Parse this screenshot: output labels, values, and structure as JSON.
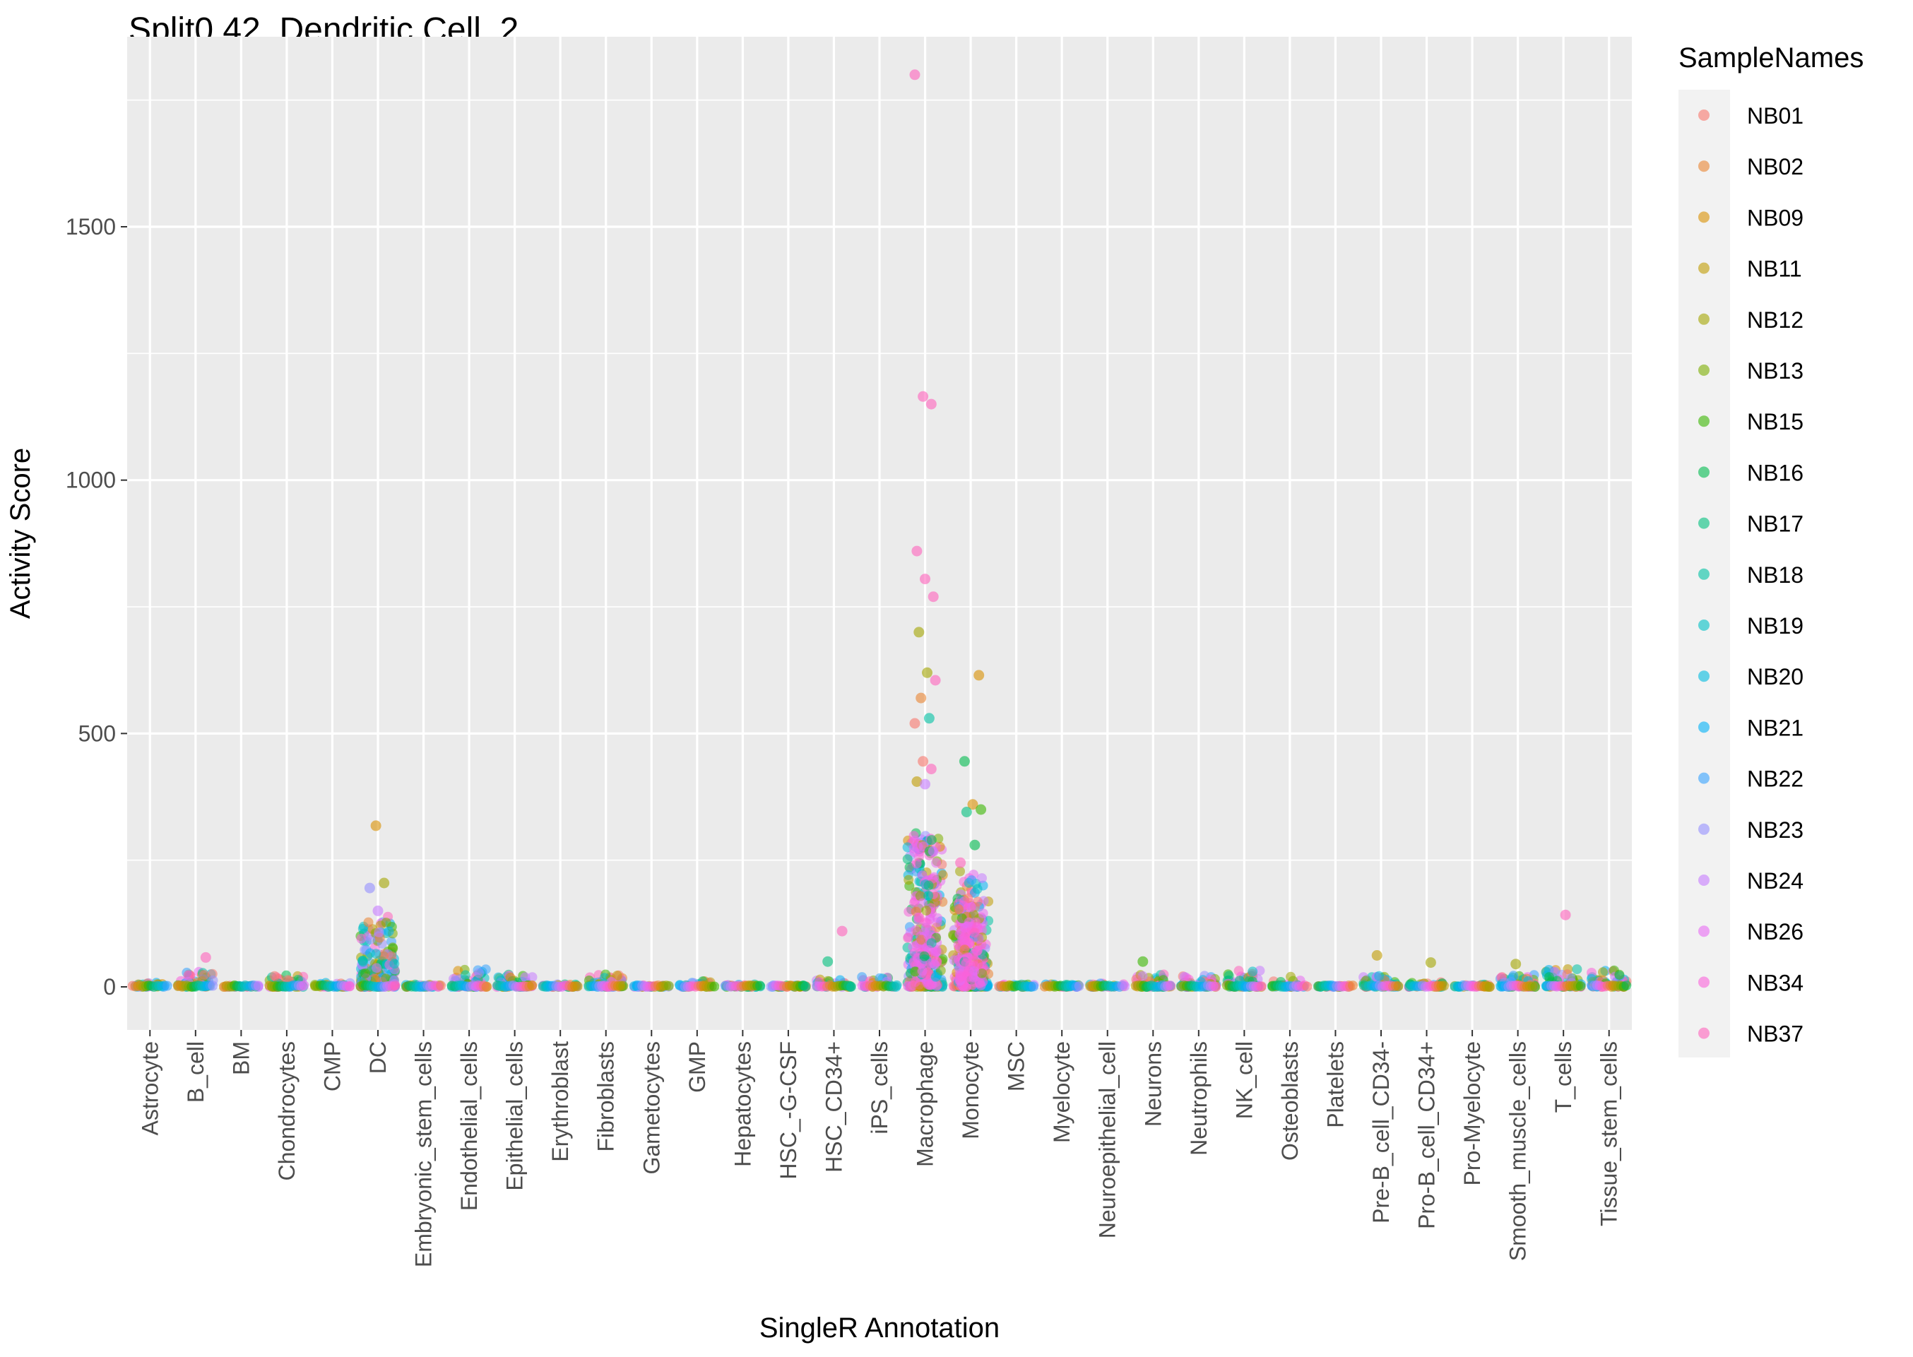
{
  "chart_data": {
    "type": "scatter",
    "title": "Split0 42. Dendritic Cell_2",
    "xlabel": "SingleR Annotation",
    "ylabel": "Activity Score",
    "ylim": [
      -85,
      1875
    ],
    "yticks": [
      0,
      500,
      1000,
      1500
    ],
    "grid": true,
    "legend_position": "right",
    "legend_title": "SampleNames",
    "categories": [
      "Astrocyte",
      "B_cell",
      "BM",
      "Chondrocytes",
      "CMP",
      "DC",
      "Embryonic_stem_cells",
      "Endothelial_cells",
      "Epithelial_cells",
      "Erythroblast",
      "Fibroblasts",
      "Gametocytes",
      "GMP",
      "Hepatocytes",
      "HSC_-G-CSF",
      "HSC_CD34+",
      "iPS_cells",
      "Macrophage",
      "Monocyte",
      "MSC",
      "Myelocyte",
      "Neuroepithelial_cell",
      "Neurons",
      "Neutrophils",
      "NK_cell",
      "Osteoblasts",
      "Platelets",
      "Pre-B_cell_CD34-",
      "Pro-B_cell_CD34+",
      "Pro-Myelocyte",
      "Smooth_muscle_cells",
      "T_cells",
      "Tissue_stem_cells"
    ],
    "series": [
      {
        "name": "NB01",
        "color": "#F8766D"
      },
      {
        "name": "NB02",
        "color": "#EA8331"
      },
      {
        "name": "NB09",
        "color": "#D89000"
      },
      {
        "name": "NB11",
        "color": "#C09B00"
      },
      {
        "name": "NB12",
        "color": "#A3A500"
      },
      {
        "name": "NB13",
        "color": "#7CAE00"
      },
      {
        "name": "NB15",
        "color": "#39B600"
      },
      {
        "name": "NB16",
        "color": "#00BB4E"
      },
      {
        "name": "NB17",
        "color": "#00BF7D"
      },
      {
        "name": "NB18",
        "color": "#00C1A3"
      },
      {
        "name": "NB19",
        "color": "#00BFC4"
      },
      {
        "name": "NB20",
        "color": "#00BAE0"
      },
      {
        "name": "NB21",
        "color": "#00B0F6"
      },
      {
        "name": "NB22",
        "color": "#35A2FF"
      },
      {
        "name": "NB23",
        "color": "#9590FF"
      },
      {
        "name": "NB24",
        "color": "#C77CFF"
      },
      {
        "name": "NB26",
        "color": "#E76BF3"
      },
      {
        "name": "NB34",
        "color": "#FA62DB"
      },
      {
        "name": "NB37",
        "color": "#FF62BC"
      }
    ],
    "outliers": [
      {
        "category": "Macrophage",
        "y": 1800,
        "sample": "NB37"
      },
      {
        "category": "Macrophage",
        "y": 1165,
        "sample": "NB37"
      },
      {
        "category": "Macrophage",
        "y": 1150,
        "sample": "NB37"
      },
      {
        "category": "Macrophage",
        "y": 860,
        "sample": "NB37"
      },
      {
        "category": "Macrophage",
        "y": 805,
        "sample": "NB37"
      },
      {
        "category": "Macrophage",
        "y": 770,
        "sample": "NB37"
      },
      {
        "category": "Macrophage",
        "y": 700,
        "sample": "NB12"
      },
      {
        "category": "Macrophage",
        "y": 620,
        "sample": "NB12"
      },
      {
        "category": "Macrophage",
        "y": 605,
        "sample": "NB37"
      },
      {
        "category": "Macrophage",
        "y": 570,
        "sample": "NB02"
      },
      {
        "category": "Macrophage",
        "y": 530,
        "sample": "NB18"
      },
      {
        "category": "Macrophage",
        "y": 520,
        "sample": "NB01"
      },
      {
        "category": "Macrophage",
        "y": 445,
        "sample": "NB01"
      },
      {
        "category": "Macrophage",
        "y": 430,
        "sample": "NB37"
      },
      {
        "category": "Macrophage",
        "y": 405,
        "sample": "NB11"
      },
      {
        "category": "Macrophage",
        "y": 400,
        "sample": "NB24"
      },
      {
        "category": "Monocyte",
        "y": 615,
        "sample": "NB09"
      },
      {
        "category": "Monocyte",
        "y": 445,
        "sample": "NB16"
      },
      {
        "category": "Monocyte",
        "y": 360,
        "sample": "NB09"
      },
      {
        "category": "Monocyte",
        "y": 350,
        "sample": "NB15"
      },
      {
        "category": "Monocyte",
        "y": 345,
        "sample": "NB17"
      },
      {
        "category": "Monocyte",
        "y": 280,
        "sample": "NB16"
      },
      {
        "category": "Monocyte",
        "y": 245,
        "sample": "NB37"
      },
      {
        "category": "DC",
        "y": 318,
        "sample": "NB09"
      },
      {
        "category": "DC",
        "y": 205,
        "sample": "NB12"
      },
      {
        "category": "DC",
        "y": 195,
        "sample": "NB23"
      },
      {
        "category": "DC",
        "y": 150,
        "sample": "NB24"
      },
      {
        "category": "HSC_CD34+",
        "y": 110,
        "sample": "NB37"
      },
      {
        "category": "HSC_CD34+",
        "y": 50,
        "sample": "NB17"
      },
      {
        "category": "T_cells",
        "y": 142,
        "sample": "NB37"
      },
      {
        "category": "B_cell",
        "y": 58,
        "sample": "NB37"
      },
      {
        "category": "Pre-B_cell_CD34-",
        "y": 62,
        "sample": "NB11"
      },
      {
        "category": "Pro-B_cell_CD34+",
        "y": 48,
        "sample": "NB12"
      },
      {
        "category": "Neurons",
        "y": 50,
        "sample": "NB15"
      },
      {
        "category": "Smooth_muscle_cells",
        "y": 45,
        "sample": "NB12"
      }
    ],
    "bulk": [
      {
        "category": "Astrocyte",
        "max": 8
      },
      {
        "category": "B_cell",
        "max": 30
      },
      {
        "category": "BM",
        "max": 3
      },
      {
        "category": "Chondrocytes",
        "max": 25
      },
      {
        "category": "CMP",
        "max": 10
      },
      {
        "category": "DC",
        "max": 140
      },
      {
        "category": "Embryonic_stem_cells",
        "max": 5
      },
      {
        "category": "Endothelial_cells",
        "max": 35
      },
      {
        "category": "Epithelial_cells",
        "max": 25
      },
      {
        "category": "Erythroblast",
        "max": 5
      },
      {
        "category": "Fibroblasts",
        "max": 28
      },
      {
        "category": "Gametocytes",
        "max": 3
      },
      {
        "category": "GMP",
        "max": 15
      },
      {
        "category": "Hepatocytes",
        "max": 5
      },
      {
        "category": "HSC_-G-CSF",
        "max": 3
      },
      {
        "category": "HSC_CD34+",
        "max": 15
      },
      {
        "category": "iPS_cells",
        "max": 20
      },
      {
        "category": "Macrophage",
        "max": 310
      },
      {
        "category": "Monocyte",
        "max": 230
      },
      {
        "category": "MSC",
        "max": 5
      },
      {
        "category": "Myelocyte",
        "max": 5
      },
      {
        "category": "Neuroepithelial_cell",
        "max": 8
      },
      {
        "category": "Neurons",
        "max": 30
      },
      {
        "category": "Neutrophils",
        "max": 25
      },
      {
        "category": "NK_cell",
        "max": 32
      },
      {
        "category": "Osteoblasts",
        "max": 20
      },
      {
        "category": "Platelets",
        "max": 3
      },
      {
        "category": "Pre-B_cell_CD34-",
        "max": 22
      },
      {
        "category": "Pro-B_cell_CD34+",
        "max": 10
      },
      {
        "category": "Pro-Myelocyte",
        "max": 5
      },
      {
        "category": "Smooth_muscle_cells",
        "max": 25
      },
      {
        "category": "T_cells",
        "max": 35
      },
      {
        "category": "Tissue_stem_cells",
        "max": 38
      }
    ]
  }
}
